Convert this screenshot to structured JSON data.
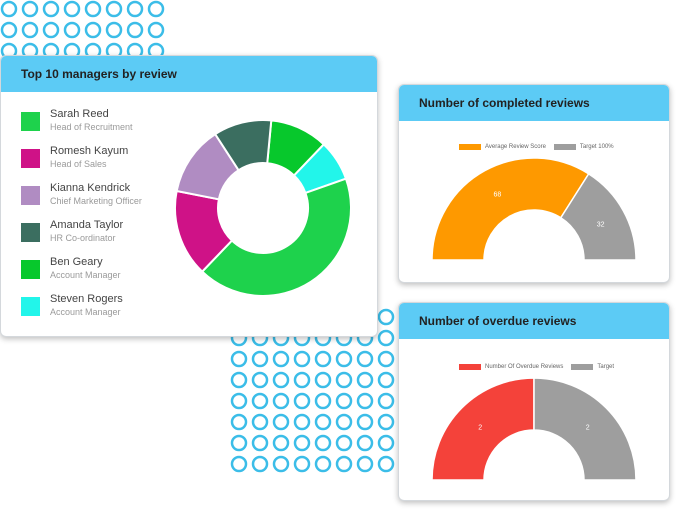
{
  "managers_card": {
    "title": "Top 10 managers by review",
    "managers": [
      {
        "name": "Sarah Reed",
        "role": "Head of Recruitment",
        "color": "#1ed24c",
        "value": 40
      },
      {
        "name": "Romesh Kayum",
        "role": "Head of Sales",
        "color": "#cf1287",
        "value": 15
      },
      {
        "name": "Kianna Kendrick",
        "role": "Chief Marketing Officer",
        "color": "#b08cc2",
        "value": 12
      },
      {
        "name": "Amanda Taylor",
        "role": "HR Co-ordinator",
        "color": "#3b6e60",
        "value": 10
      },
      {
        "name": "Ben Geary",
        "role": "Account Manager",
        "color": "#07c82c",
        "value": 10
      },
      {
        "name": "Steven Rogers",
        "role": "Account Manager",
        "color": "#22f5ea",
        "value": 7
      }
    ]
  },
  "completed_card": {
    "title": "Number of completed reviews",
    "legend": [
      {
        "label": "Average Review Score",
        "color": "#fe9900"
      },
      {
        "label": "Target 100%",
        "color": "#9e9e9e"
      }
    ],
    "values": [
      "68",
      "32"
    ]
  },
  "overdue_card": {
    "title": "Number of overdue reviews",
    "legend": [
      {
        "label": "Number Of Overdue Reviews",
        "color": "#f4423a"
      },
      {
        "label": "Target",
        "color": "#9e9e9e"
      }
    ],
    "values": [
      "2",
      "2"
    ]
  },
  "chart_data": [
    {
      "type": "pie",
      "title": "Top 10 managers by review",
      "categories": [
        "Sarah Reed",
        "Romesh Kayum",
        "Kianna Kendrick",
        "Amanda Taylor",
        "Ben Geary",
        "Steven Rogers"
      ],
      "values": [
        40,
        15,
        12,
        10,
        10,
        7
      ]
    },
    {
      "type": "pie",
      "title": "Number of completed reviews",
      "categories": [
        "Average Review Score",
        "Target 100%"
      ],
      "values": [
        68,
        32
      ]
    },
    {
      "type": "pie",
      "title": "Number of overdue reviews",
      "categories": [
        "Number Of Overdue Reviews",
        "Target"
      ],
      "values": [
        2,
        2
      ]
    }
  ],
  "colors": {
    "header": "#5ccbf5",
    "dots": "#3bbde8"
  }
}
